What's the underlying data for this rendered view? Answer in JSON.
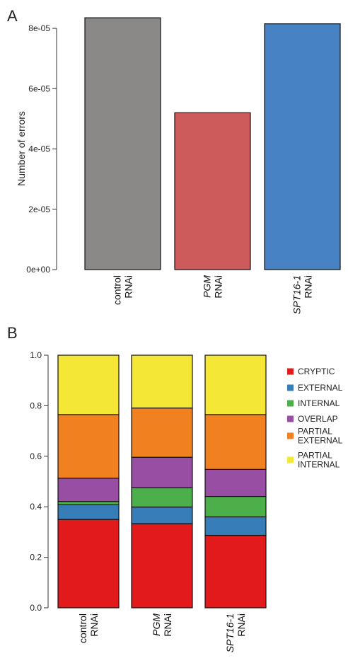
{
  "panel_a": {
    "letter": "A"
  },
  "panel_b": {
    "letter": "B"
  },
  "chart_data": [
    {
      "type": "bar",
      "panel": "A",
      "ylabel": "Number of errors",
      "ylim": [
        0,
        8.4e-05
      ],
      "yticks": [
        "0e+00",
        "2e-05",
        "4e-05",
        "6e-05",
        "8e-05"
      ],
      "ytick_values": [
        0,
        2e-05,
        4e-05,
        6e-05,
        8e-05
      ],
      "categories": [
        {
          "name": "control",
          "italic": false,
          "suffix": "RNAi"
        },
        {
          "name": "PGM",
          "italic": true,
          "suffix": "RNAi"
        },
        {
          "name": "SPT16-1",
          "italic": true,
          "suffix": "RNAi"
        }
      ],
      "values": [
        8.35e-05,
        5.2e-05,
        8.15e-05
      ],
      "colors": [
        "#8b8988",
        "#cd5b5b",
        "#4682c4"
      ]
    },
    {
      "type": "bar",
      "stacked": true,
      "panel": "B",
      "ylim": [
        0,
        1
      ],
      "yticks": [
        "0.0",
        "0.2",
        "0.4",
        "0.6",
        "0.8",
        "1.0"
      ],
      "ytick_values": [
        0,
        0.2,
        0.4,
        0.6,
        0.8,
        1.0
      ],
      "categories": [
        {
          "name": "control",
          "italic": false,
          "suffix": "RNAi"
        },
        {
          "name": "PGM",
          "italic": true,
          "suffix": "RNAi"
        },
        {
          "name": "SPT16-1",
          "italic": true,
          "suffix": "RNAi"
        }
      ],
      "series": [
        {
          "name": [
            "CRYPTIC"
          ],
          "color": "#e31a1c",
          "values": [
            0.35,
            0.333,
            0.287
          ]
        },
        {
          "name": [
            "EXTERNAL"
          ],
          "color": "#377eb8",
          "values": [
            0.058,
            0.066,
            0.073
          ]
        },
        {
          "name": [
            "INTERNAL"
          ],
          "color": "#4daf4a",
          "values": [
            0.013,
            0.076,
            0.081
          ]
        },
        {
          "name": [
            "OVERLAP"
          ],
          "color": "#984ea3",
          "values": [
            0.092,
            0.121,
            0.107
          ]
        },
        {
          "name": [
            "PARTIAL",
            "EXTERNAL"
          ],
          "color": "#f08020",
          "values": [
            0.252,
            0.195,
            0.217
          ]
        },
        {
          "name": [
            "PARTIAL",
            "INTERNAL"
          ],
          "color": "#f4e736",
          "values": [
            0.235,
            0.209,
            0.235
          ]
        }
      ],
      "legend": "right"
    }
  ]
}
